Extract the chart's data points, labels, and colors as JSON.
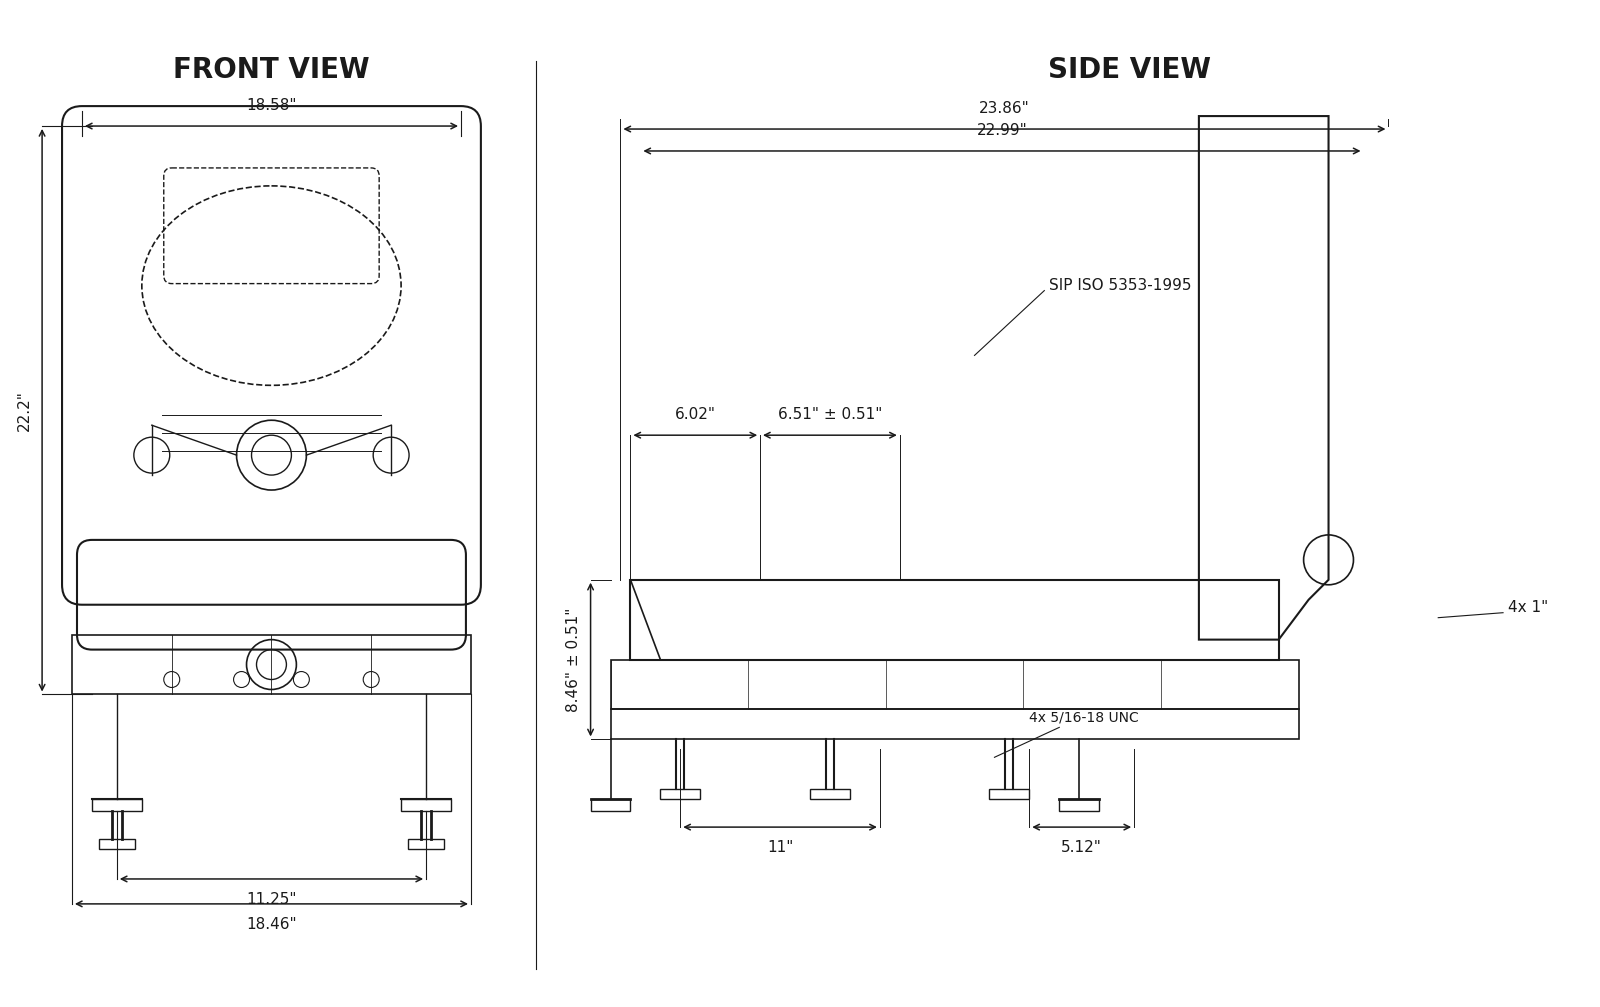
{
  "title_left": "FRONT VIEW",
  "title_right": "SIDE VIEW",
  "background_color": "#ffffff",
  "title_fontsize": 20,
  "title_fontweight": "bold",
  "dim_fontsize": 11,
  "line_color": "#1a1a1a",
  "dims_front": {
    "top_width": "18.58\"",
    "side_height": "22.2\"",
    "bottom_inner": "11.25\"",
    "bottom_outer": "18.46\""
  },
  "dims_side": {
    "top_width1": "23.86\"",
    "top_width2": "22.99\"",
    "sip_label": "SIP ISO 5353-1995",
    "dim1": "6.02\"",
    "dim2": "6.51\" ± 0.51\"",
    "dim3": "8.46\" ± 0.51\"",
    "dim4": "4x 5/16-18 UNC",
    "dim5": "4x 1\"",
    "dim6": "11\"",
    "dim7": "5.12\""
  }
}
